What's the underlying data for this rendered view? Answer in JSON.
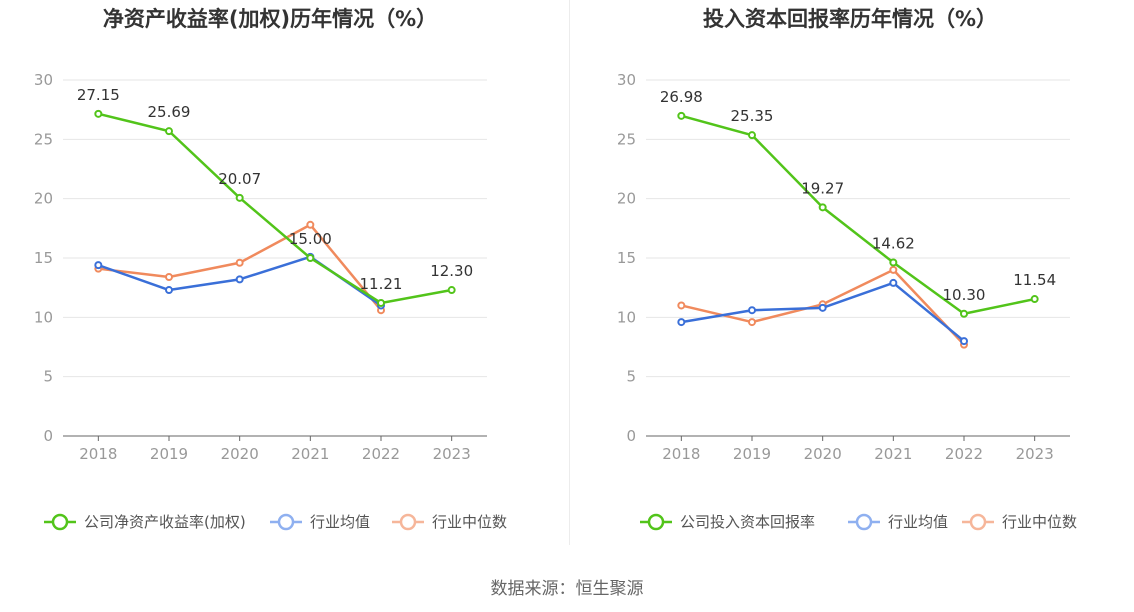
{
  "source": "数据来源：恒生聚源",
  "colors": {
    "company": "#52c41a",
    "industry_avg": "#3a6fd8",
    "industry_median": "#f08a5d",
    "legend_avg": "#8fb0f0",
    "legend_median": "#f6b69a",
    "axis": "#999999",
    "grid": "#e6e6e6",
    "title": "#333333"
  },
  "chart_data": [
    {
      "type": "line",
      "title": "净资产收益率(加权)历年情况（%）",
      "categories": [
        "2018",
        "2019",
        "2020",
        "2021",
        "2022",
        "2023"
      ],
      "ylim": [
        0,
        30
      ],
      "yticks": [
        "0",
        "5",
        "10",
        "15",
        "20",
        "25",
        "30"
      ],
      "grid": true,
      "legend_position": "bottom",
      "series": [
        {
          "name": "公司净资产收益率(加权)",
          "key": "company",
          "values": [
            27.15,
            25.69,
            20.07,
            15.0,
            11.21,
            12.3
          ],
          "labels": [
            "27.15",
            "25.69",
            "20.07",
            "15.00",
            "11.21",
            "12.30"
          ]
        },
        {
          "name": "行业均值",
          "key": "industry_avg",
          "values": [
            14.4,
            12.3,
            13.2,
            15.1,
            11.0,
            null
          ]
        },
        {
          "name": "行业中位数",
          "key": "industry_median",
          "values": [
            14.1,
            13.4,
            14.6,
            17.8,
            10.6,
            null
          ]
        }
      ]
    },
    {
      "type": "line",
      "title": "投入资本回报率历年情况（%）",
      "categories": [
        "2018",
        "2019",
        "2020",
        "2021",
        "2022",
        "2023"
      ],
      "ylim": [
        0,
        30
      ],
      "yticks": [
        "0",
        "5",
        "10",
        "15",
        "20",
        "25",
        "30"
      ],
      "grid": true,
      "legend_position": "bottom",
      "series": [
        {
          "name": "公司投入资本回报率",
          "key": "company",
          "values": [
            26.98,
            25.35,
            19.27,
            14.62,
            10.3,
            11.54
          ],
          "labels": [
            "26.98",
            "25.35",
            "19.27",
            "14.62",
            "10.30",
            "11.54"
          ]
        },
        {
          "name": "行业均值",
          "key": "industry_avg",
          "values": [
            9.6,
            10.6,
            10.8,
            12.9,
            8.0,
            null
          ]
        },
        {
          "name": "行业中位数",
          "key": "industry_median",
          "values": [
            11.0,
            9.6,
            11.1,
            14.0,
            7.7,
            null
          ]
        }
      ]
    }
  ]
}
